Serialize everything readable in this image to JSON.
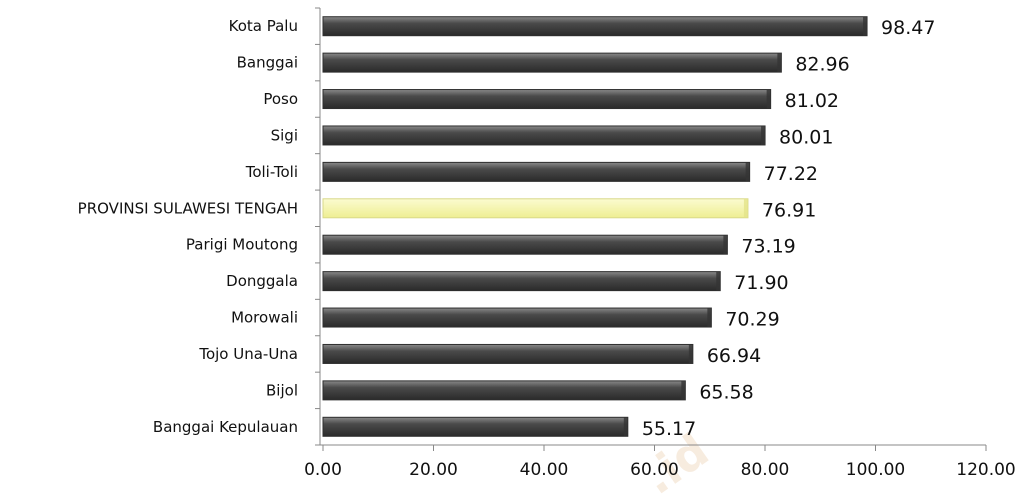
{
  "chart_data": {
    "type": "bar",
    "orientation": "horizontal",
    "categories": [
      "Kota Palu",
      "Banggai",
      "Poso",
      "Sigi",
      "Toli-Toli",
      "PROVINSI SULAWESI TENGAH",
      "Parigi Moutong",
      "Donggala",
      "Morowali",
      "Tojo Una-Una",
      "Bijol",
      "Banggai Kepulauan"
    ],
    "values": [
      98.47,
      82.96,
      81.02,
      80.01,
      77.22,
      76.91,
      73.19,
      71.9,
      70.29,
      66.94,
      65.58,
      55.17
    ],
    "value_labels": [
      "98.47",
      "82.96",
      "81.02",
      "80.01",
      "77.22",
      "76.91",
      "73.19",
      "71.90",
      "70.29",
      "66.94",
      "65.58",
      "55.17"
    ],
    "highlight_index": 5,
    "xlim": [
      0,
      120
    ],
    "x_ticks": [
      0,
      20,
      40,
      60,
      80,
      100,
      120
    ],
    "x_tick_labels": [
      "0.00",
      "20.00",
      "40.00",
      "60.00",
      "80.00",
      "100.00",
      "120.00"
    ],
    "title": "",
    "xlabel": "",
    "ylabel": "",
    "grid": false,
    "legend": "none",
    "colors": {
      "bar": "#4a4a4a",
      "bar_highlight": "#f6f6a6",
      "axis": "#888888"
    }
  },
  "watermark_text": ".id"
}
